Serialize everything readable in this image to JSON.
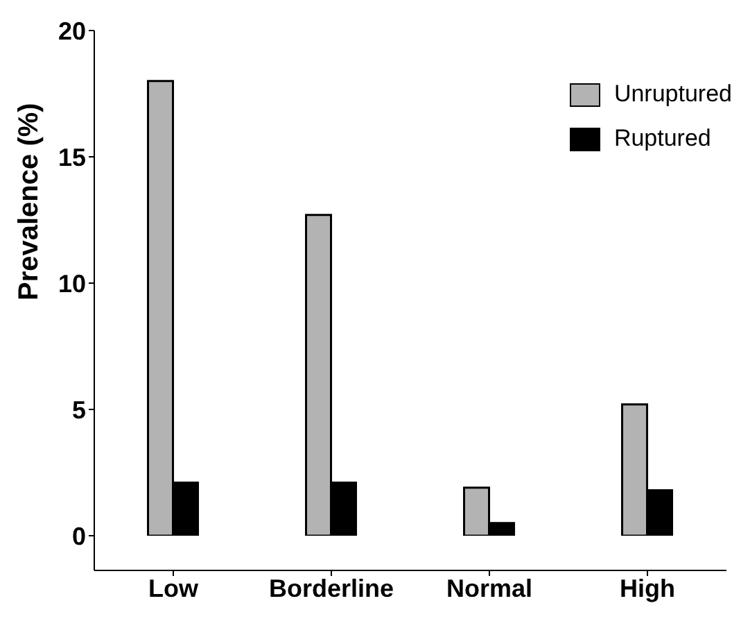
{
  "chart_data": {
    "type": "bar",
    "ylabel": "Prevalence (%)",
    "categories": [
      "Low",
      "Borderline",
      "Normal",
      "High"
    ],
    "series": [
      {
        "name": "Unruptured",
        "color": "#b3b3b3",
        "values": [
          18.0,
          12.7,
          1.9,
          5.2
        ]
      },
      {
        "name": "Ruptured",
        "color": "#000000",
        "values": [
          2.1,
          2.1,
          0.5,
          1.8
        ]
      }
    ],
    "ylim": [
      0,
      20
    ],
    "yticks": [
      0,
      5,
      10,
      15,
      20
    ],
    "grid": false,
    "legend": "top right"
  }
}
